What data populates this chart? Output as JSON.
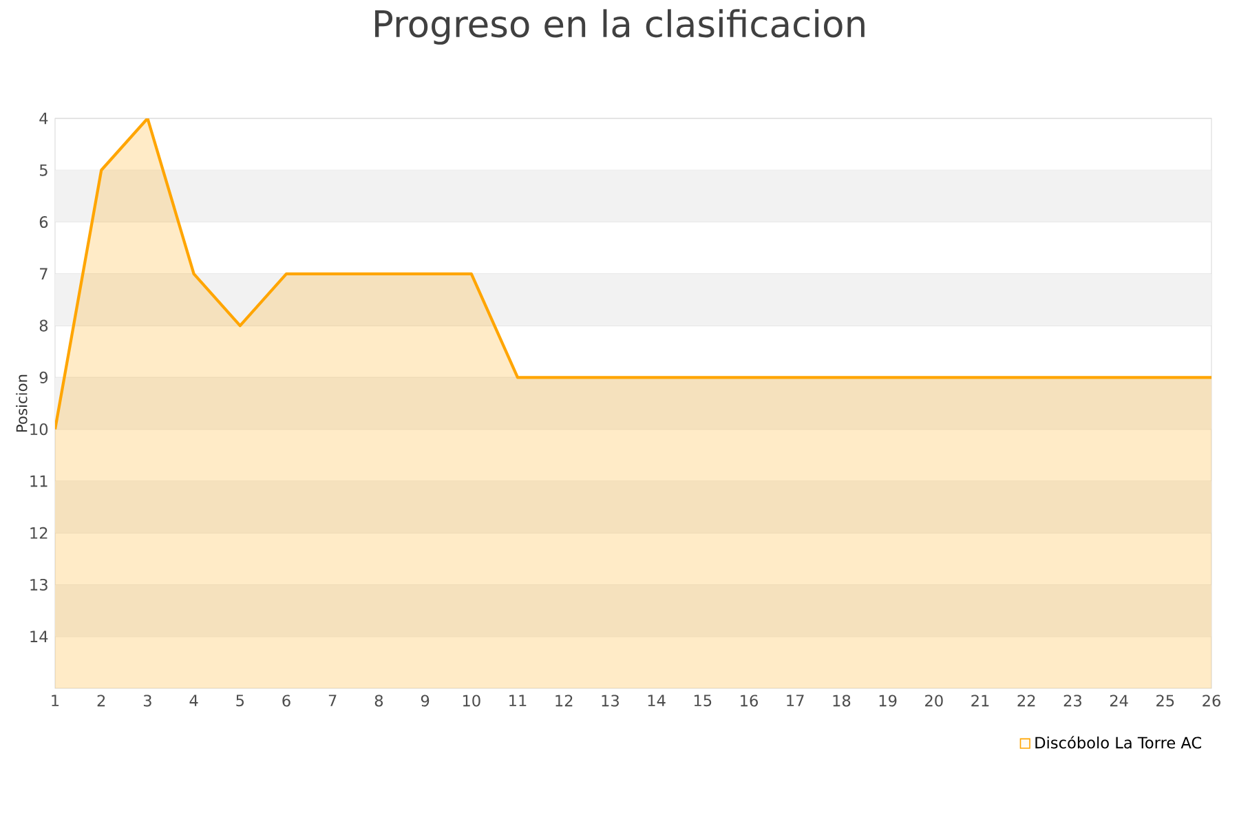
{
  "chart_data": {
    "type": "area",
    "title": "Progreso en la clasificacion",
    "ylabel": "Posicion",
    "x": [
      1,
      2,
      3,
      4,
      5,
      6,
      7,
      8,
      9,
      10,
      11,
      12,
      13,
      14,
      15,
      16,
      17,
      18,
      19,
      20,
      21,
      22,
      23,
      24,
      25,
      26
    ],
    "series": [
      {
        "name": "Discóbolo La Torre AC",
        "color": "#ffa500",
        "values": [
          10,
          5,
          4,
          7,
          8,
          7,
          7,
          7,
          7,
          7,
          9,
          9,
          9,
          9,
          9,
          9,
          9,
          9,
          9,
          9,
          9,
          9,
          9,
          9,
          9,
          9
        ]
      }
    ],
    "xlim": [
      1,
      26
    ],
    "xticks": [
      1,
      2,
      3,
      4,
      5,
      6,
      7,
      8,
      9,
      10,
      11,
      12,
      13,
      14,
      15,
      16,
      17,
      18,
      19,
      20,
      21,
      22,
      23,
      24,
      25,
      26
    ],
    "ylim": [
      15,
      4
    ],
    "yticks": [
      4,
      5,
      6,
      7,
      8,
      9,
      10,
      11,
      12,
      13,
      14
    ],
    "bands": [
      {
        "axis": "y",
        "from": 5,
        "to": 6,
        "color": "#f2f2f2"
      },
      {
        "axis": "y",
        "from": 7,
        "to": 8,
        "color": "#f2f2f2"
      },
      {
        "axis": "y",
        "from": 9,
        "to": 10,
        "color": "#f2f2f2"
      },
      {
        "axis": "y",
        "from": 11,
        "to": 12,
        "color": "#f2f2f2"
      },
      {
        "axis": "y",
        "from": 13,
        "to": 14,
        "color": "#f2f2f2"
      }
    ],
    "grid": "y",
    "legend": "bottom right",
    "marker": "none",
    "line_style": "solid"
  }
}
